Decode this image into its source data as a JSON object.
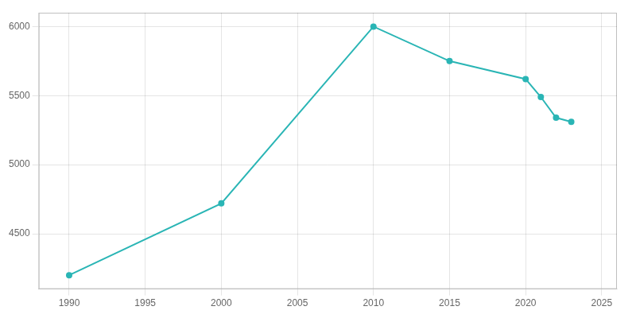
{
  "chart_data": {
    "type": "line",
    "x": [
      1990,
      2000,
      2010,
      2015,
      2020,
      2021,
      2022,
      2023
    ],
    "values": [
      4200,
      4720,
      6000,
      5750,
      5620,
      5490,
      5340,
      5310
    ],
    "color": "#2ab5b5",
    "marker": "circle",
    "xlim": [
      1988,
      2026
    ],
    "ylim": [
      4100,
      6100
    ],
    "xticks": [
      1990,
      1995,
      2000,
      2005,
      2010,
      2015,
      2020,
      2025
    ],
    "yticks": [
      4500,
      5000,
      5500,
      6000
    ],
    "grid": true
  }
}
